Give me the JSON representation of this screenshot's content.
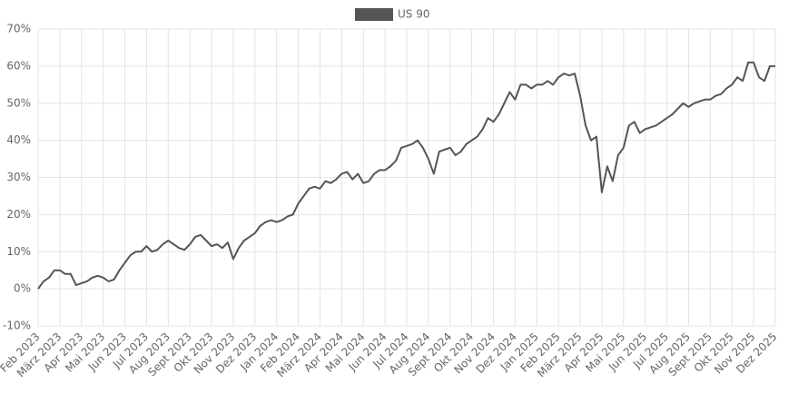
{
  "chart_data": {
    "type": "line",
    "categories": [
      "Feb 2023",
      null,
      null,
      null,
      "März 2023",
      null,
      null,
      null,
      "Apr 2023",
      null,
      null,
      null,
      "Mai 2023",
      null,
      null,
      null,
      "Jun 2023",
      null,
      null,
      null,
      "Jul 2023",
      null,
      null,
      null,
      "Aug 2023",
      null,
      null,
      null,
      "Sept 2023",
      null,
      null,
      null,
      "Okt 2023",
      null,
      null,
      null,
      "Nov 2023",
      null,
      null,
      null,
      "Dez 2023",
      null,
      null,
      null,
      "Jan 2024",
      null,
      null,
      null,
      "Feb 2024",
      null,
      null,
      null,
      "März 2024",
      null,
      null,
      null,
      "Apr 2024",
      null,
      null,
      null,
      "Mai 2024",
      null,
      null,
      null,
      "Jun 2024",
      null,
      null,
      null,
      "Jul 2024",
      null,
      null,
      null,
      "Aug 2024",
      null,
      null,
      null,
      "Sept 2024",
      null,
      null,
      null,
      "Okt 2024",
      null,
      null,
      null,
      "Nov 2024",
      null,
      null,
      null,
      "Dez 2024",
      null,
      null,
      null,
      "Jan 2025",
      null,
      null,
      null,
      "Feb 2025",
      null,
      null,
      null,
      "März 2025",
      null,
      null,
      null,
      "Apr 2025",
      null,
      null,
      null,
      "Mai 2025",
      null,
      null,
      null,
      "Jun 2025",
      null,
      null,
      null,
      "Jul 2025",
      null,
      null,
      null,
      "Aug 2025",
      null,
      null,
      null,
      "Sept 2025",
      null,
      null,
      null,
      "Okt 2025",
      null,
      null,
      null,
      "Nov 2025",
      null,
      null,
      null,
      "Dez 2025"
    ],
    "series": [
      {
        "name": "US 90",
        "color": "#555555",
        "values": [
          0,
          2,
          3,
          5,
          5,
          4,
          4,
          1,
          1.5,
          2,
          3,
          3.5,
          3,
          2,
          2.5,
          5,
          7,
          9,
          10,
          10,
          11.5,
          10,
          10.5,
          12,
          13,
          12,
          11,
          10.5,
          12,
          14,
          14.5,
          13,
          11.5,
          12,
          11,
          12.5,
          8,
          11,
          13,
          14,
          15,
          17,
          18,
          18.5,
          18,
          18.5,
          19.5,
          20,
          23,
          25,
          27,
          27.5,
          27,
          29,
          28.5,
          29.5,
          31,
          31.5,
          29.5,
          31,
          28.5,
          29,
          31,
          32,
          32,
          33,
          34.5,
          38,
          38.5,
          39,
          40,
          38,
          35,
          31,
          37,
          37.5,
          38,
          36,
          37,
          39,
          40,
          41,
          43,
          46,
          45,
          47,
          50,
          53,
          51,
          55,
          55,
          54,
          55,
          55,
          56,
          55,
          57,
          58,
          57.5,
          58,
          52,
          44,
          40,
          41,
          26,
          33,
          29,
          36,
          38,
          44,
          45,
          42,
          43,
          43.5,
          44,
          45,
          46,
          47,
          48.5,
          50,
          49,
          50,
          50.5,
          51,
          51,
          52,
          52.5,
          54,
          55,
          57,
          56,
          61,
          61,
          57,
          56,
          60,
          60
        ]
      }
    ],
    "ylim": [
      -10,
      70
    ],
    "yticks": [
      {
        "value": -10,
        "label": "-10%"
      },
      {
        "value": 0,
        "label": "0%"
      },
      {
        "value": 10,
        "label": "10%"
      },
      {
        "value": 20,
        "label": "20%"
      },
      {
        "value": 30,
        "label": "30%"
      },
      {
        "value": 40,
        "label": "40%"
      },
      {
        "value": 50,
        "label": "50%"
      },
      {
        "value": 60,
        "label": "60%"
      },
      {
        "value": 70,
        "label": "70%"
      }
    ],
    "grid": true
  }
}
